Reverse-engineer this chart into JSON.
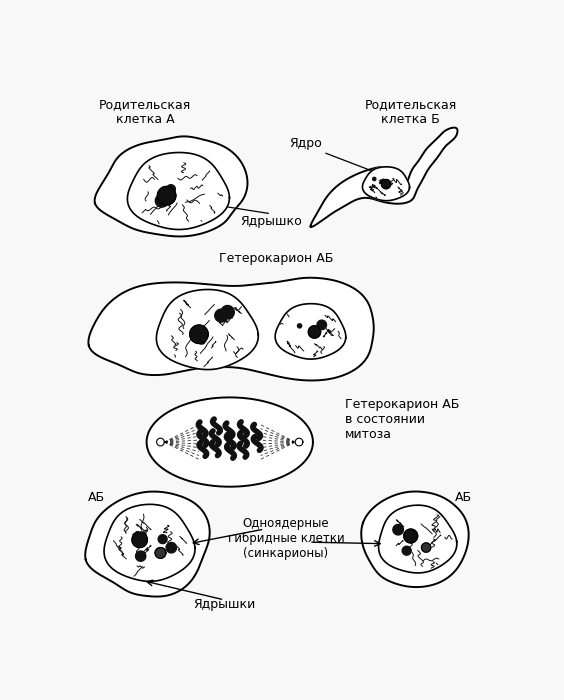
{
  "bg_color": "#f8f8f8",
  "line_color": "#000000",
  "labels": {
    "cell_a": "Родительская\nклетка А",
    "cell_b": "Родительская\nклетка Б",
    "nucleus": "Ядро",
    "nucleolus_top": "Ядрышко",
    "heterokaryon": "Гетерокарион АБ",
    "heterokaryon_mitosis": "Гетерокарион АБ\nв состоянии\nмитоза",
    "ab_left": "АБ",
    "ab_right": "АБ",
    "hybrid_cells": "Одноядерные\nгибридные клетки\n(синкарионы)",
    "nucleoli_bottom": "Ядрышки"
  }
}
